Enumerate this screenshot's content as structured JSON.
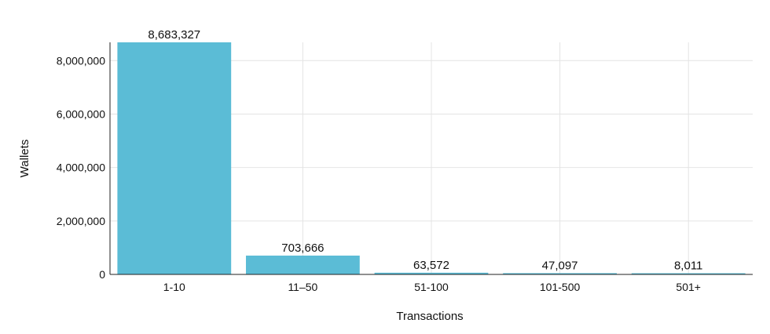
{
  "chart_data": {
    "type": "bar",
    "xlabel": "Transactions",
    "ylabel": "Wallets",
    "categories": [
      "1-10",
      "11–50",
      "51-100",
      "101-500",
      "501+"
    ],
    "values": [
      8683327,
      703666,
      63572,
      47097,
      8011
    ],
    "data_labels": [
      "8,683,327",
      "703,666",
      "63,572",
      "47,097",
      "8,011"
    ],
    "ylim": [
      0,
      8683327
    ],
    "yticks": [
      0,
      2000000,
      4000000,
      6000000,
      8000000
    ],
    "ytick_labels": [
      "0",
      "2,000,000",
      "4,000,000",
      "6,000,000",
      "8,000,000"
    ],
    "grid": true,
    "legend": "none",
    "colors": {
      "bar": "#5bbcd6",
      "grid": "#e4e4e4",
      "axis": "#222222"
    }
  }
}
